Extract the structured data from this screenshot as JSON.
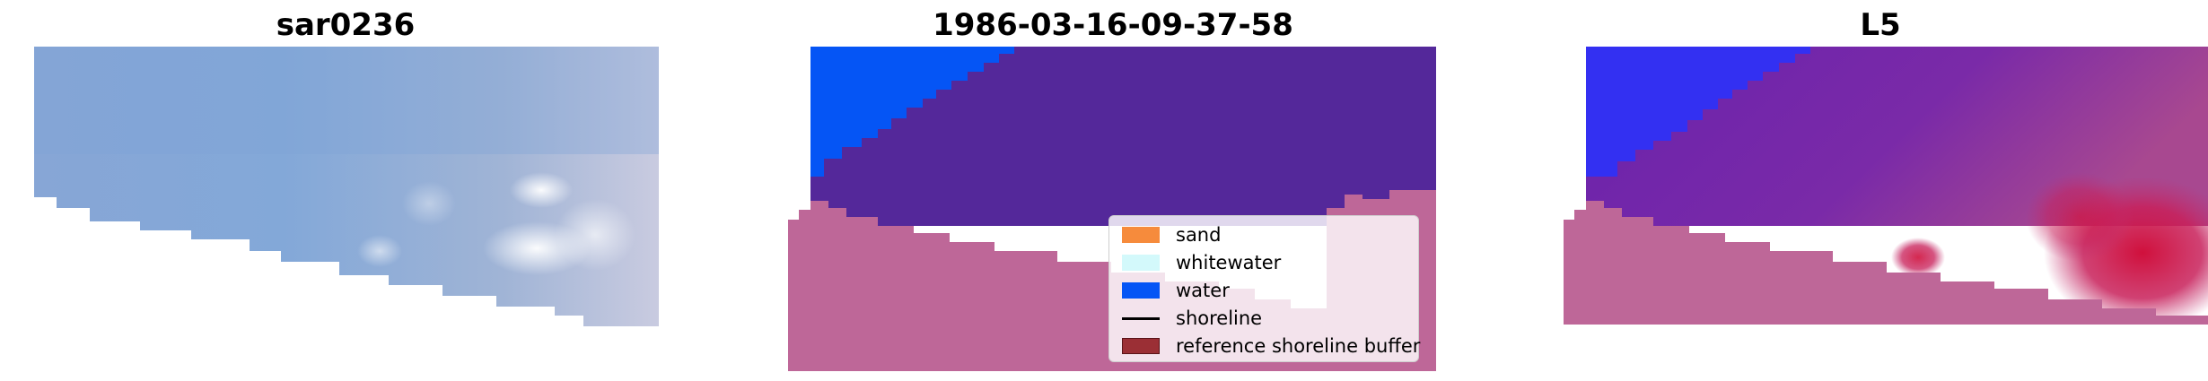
{
  "panels": [
    {
      "title": "sar0236"
    },
    {
      "title": "1986-03-16-09-37-58"
    },
    {
      "title": "L5"
    }
  ],
  "legend": {
    "items": [
      {
        "label": "sand",
        "color": "#f68b3c"
      },
      {
        "label": "whitewater",
        "color": "#d3f9fb"
      },
      {
        "label": "water",
        "color": "#0555f5"
      },
      {
        "label": "shoreline",
        "color": "#000000"
      },
      {
        "label": "reference shoreline buffer",
        "color": "#9b2f35"
      }
    ]
  },
  "colors": {
    "sky_blue": "#8aa8d6",
    "classified_water": "#0555f5",
    "classified_dark": "#54289a",
    "classified_pink": "#be6798",
    "l5_blue": "#2d2af0",
    "l5_purple": "#6c22a8",
    "l5_red": "#cc1040"
  }
}
